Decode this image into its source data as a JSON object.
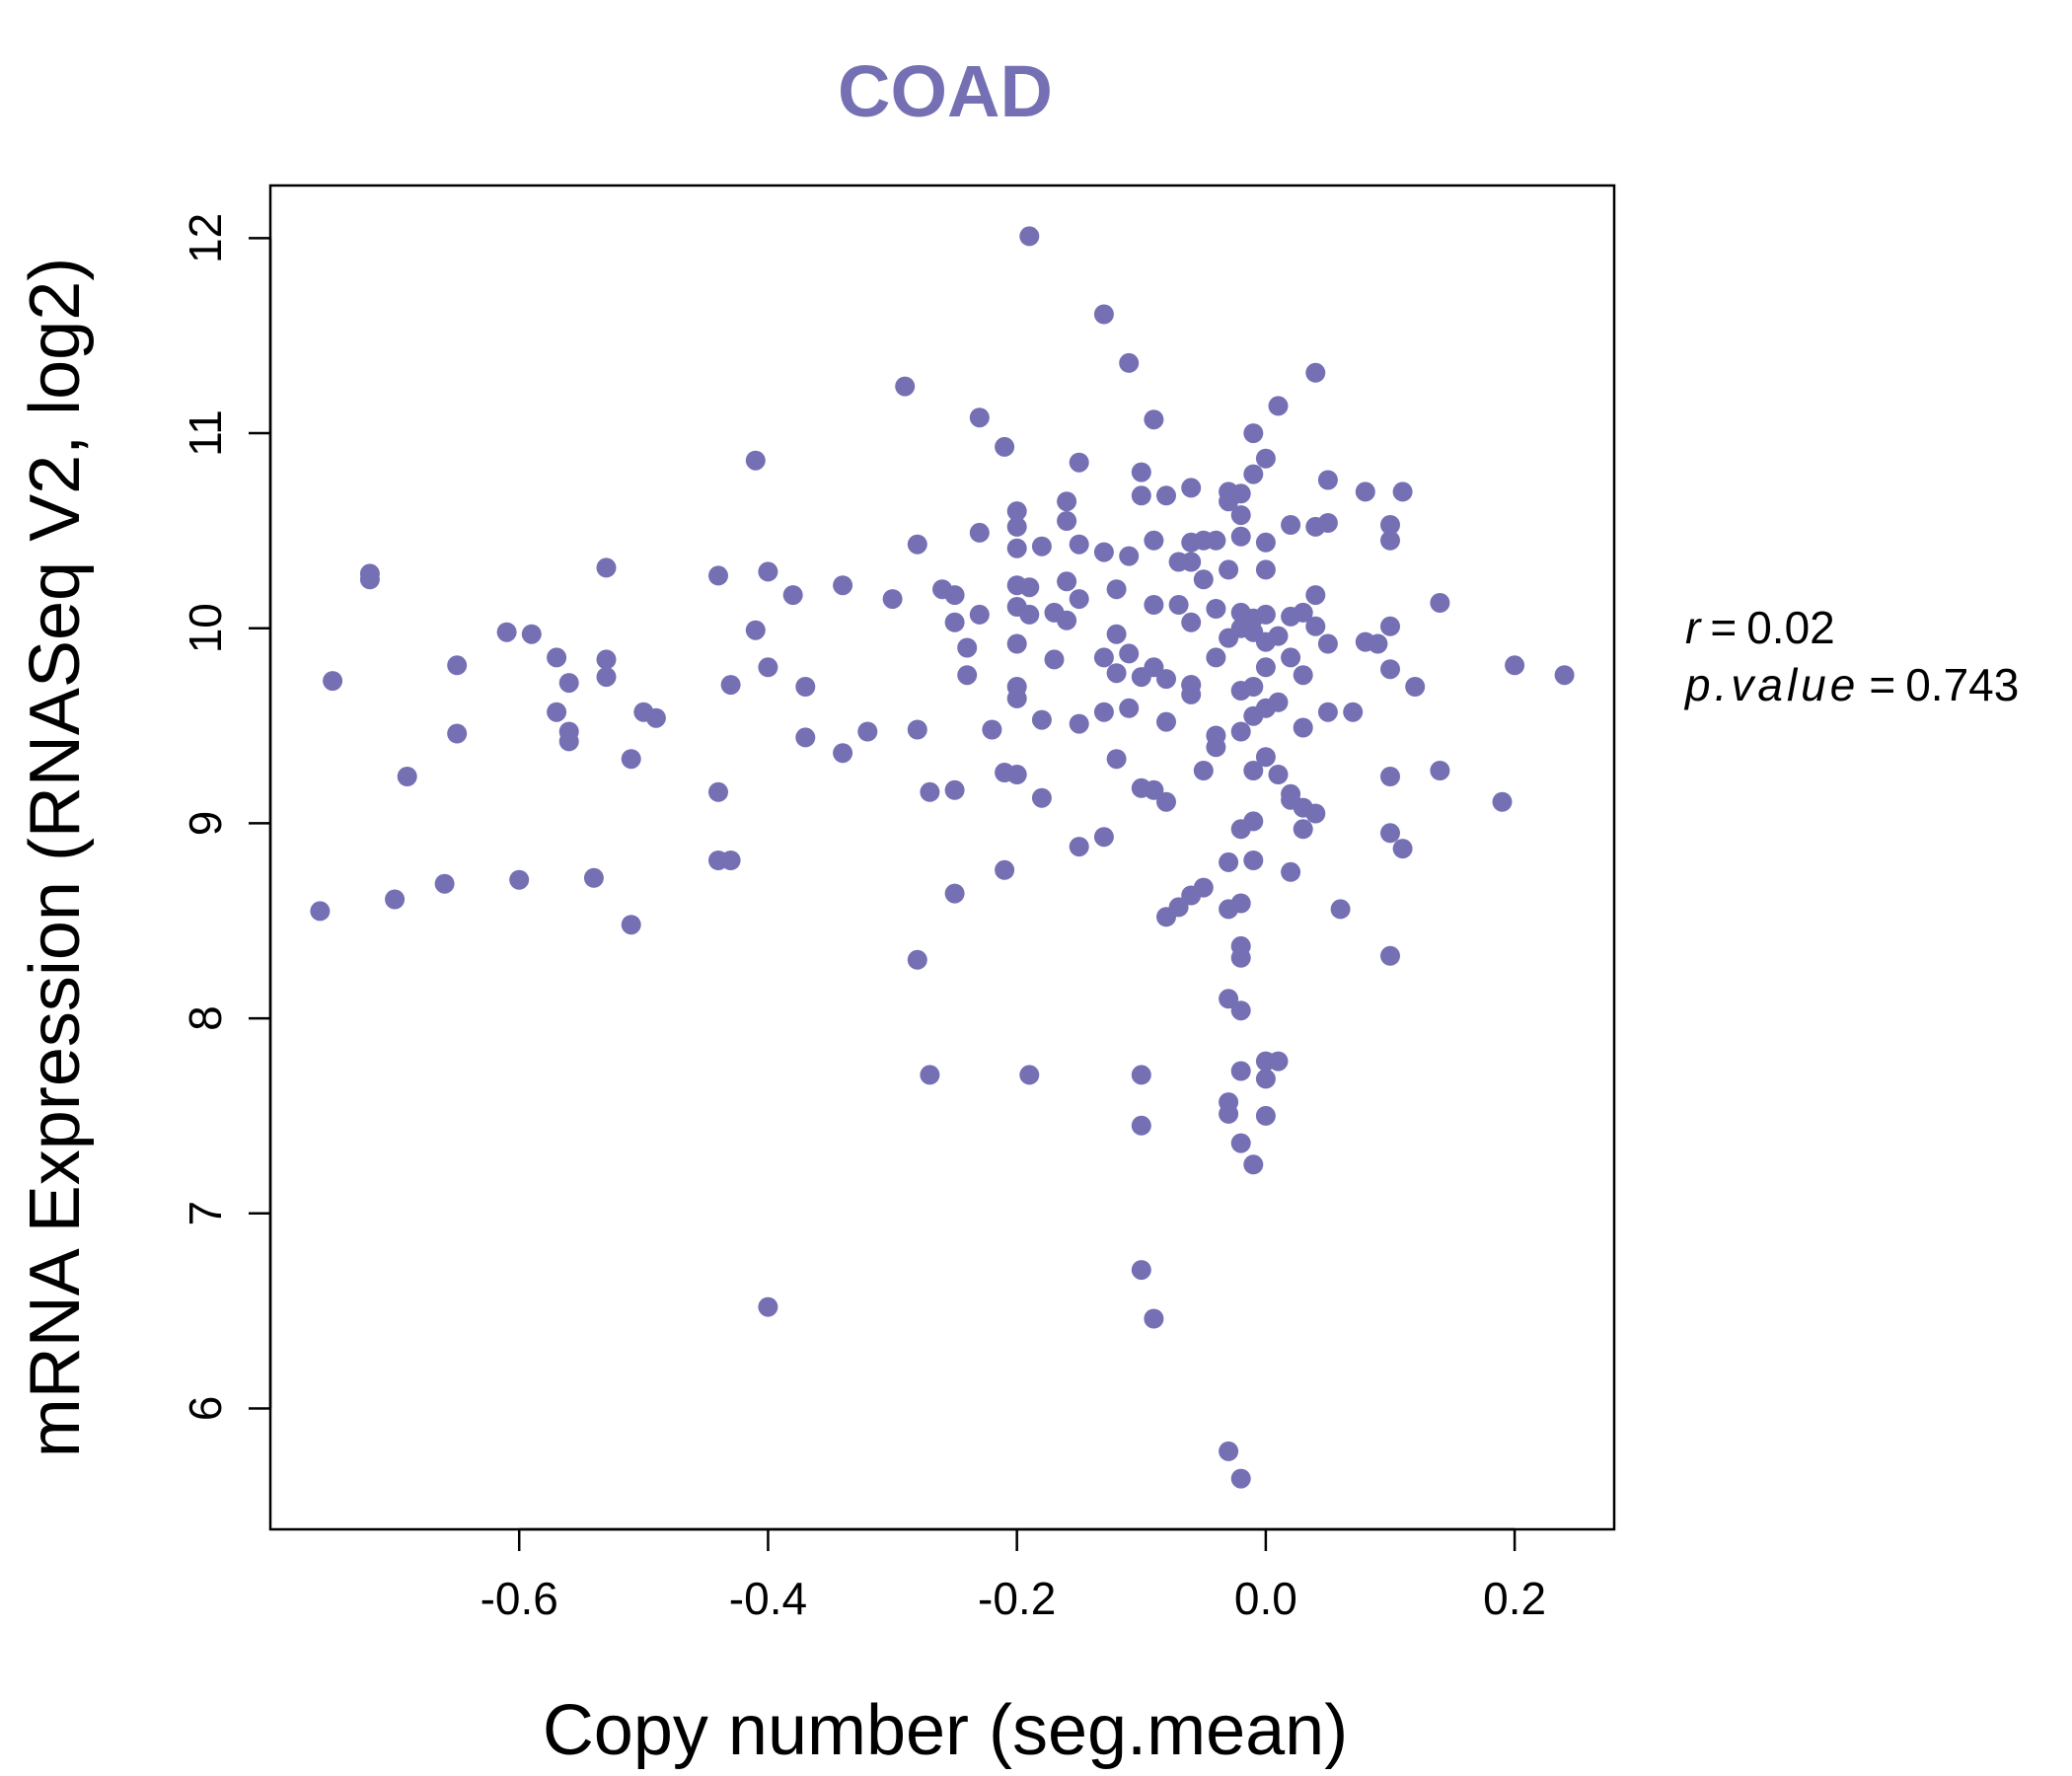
{
  "colors": {
    "point": "#7570B3",
    "title": "#7570B3",
    "axis": "#000000"
  },
  "stats": {
    "r_label": "r",
    "r_value": "0.02",
    "p_label": "p.value",
    "p_value": "0.743"
  },
  "chart_data": {
    "type": "scatter",
    "title": "COAD",
    "xlabel": "Copy number (seg.mean)",
    "ylabel": "mRNA Expression (RNASeq V2, log2)",
    "xlim": [
      -0.8,
      0.28
    ],
    "ylim": [
      5.38,
      12.27
    ],
    "xticks": [
      {
        "value": -0.6,
        "label": "-0.6"
      },
      {
        "value": -0.4,
        "label": "-0.4"
      },
      {
        "value": -0.2,
        "label": "-0.2"
      },
      {
        "value": 0.0,
        "label": "0.0"
      },
      {
        "value": 0.2,
        "label": "0.2"
      }
    ],
    "yticks": [
      {
        "value": 6,
        "label": "6"
      },
      {
        "value": 7,
        "label": "7"
      },
      {
        "value": 8,
        "label": "8"
      },
      {
        "value": 9,
        "label": "9"
      },
      {
        "value": 10,
        "label": "10"
      },
      {
        "value": 11,
        "label": "11"
      },
      {
        "value": 12,
        "label": "12"
      }
    ],
    "grid": false,
    "points": [
      [
        -0.19,
        12.01
      ],
      [
        -0.13,
        11.61
      ],
      [
        -0.11,
        11.36
      ],
      [
        -0.29,
        11.24
      ],
      [
        -0.23,
        11.08
      ],
      [
        -0.09,
        11.07
      ],
      [
        0.04,
        11.31
      ],
      [
        0.01,
        11.14
      ],
      [
        -0.21,
        10.93
      ],
      [
        -0.01,
        11.0
      ],
      [
        0.0,
        10.87
      ],
      [
        -0.41,
        10.86
      ],
      [
        -0.15,
        10.85
      ],
      [
        -0.1,
        10.8
      ],
      [
        -0.01,
        10.79
      ],
      [
        0.05,
        10.76
      ],
      [
        0.08,
        10.7
      ],
      [
        0.11,
        10.7
      ],
      [
        -0.06,
        10.72
      ],
      [
        -0.03,
        10.7
      ],
      [
        -0.02,
        10.69
      ],
      [
        -0.1,
        10.68
      ],
      [
        -0.08,
        10.68
      ],
      [
        -0.03,
        10.65
      ],
      [
        -0.16,
        10.65
      ],
      [
        -0.2,
        10.6
      ],
      [
        -0.02,
        10.58
      ],
      [
        -0.16,
        10.55
      ],
      [
        0.02,
        10.53
      ],
      [
        0.05,
        10.54
      ],
      [
        0.1,
        10.53
      ],
      [
        -0.2,
        10.52
      ],
      [
        -0.23,
        10.49
      ],
      [
        -0.04,
        10.45
      ],
      [
        -0.02,
        10.47
      ],
      [
        0.1,
        10.45
      ],
      [
        -0.28,
        10.43
      ],
      [
        -0.2,
        10.41
      ],
      [
        -0.18,
        10.42
      ],
      [
        -0.15,
        10.43
      ],
      [
        -0.13,
        10.39
      ],
      [
        -0.11,
        10.37
      ],
      [
        -0.09,
        10.45
      ],
      [
        -0.06,
        10.44
      ],
      [
        -0.05,
        10.45
      ],
      [
        0.0,
        10.44
      ],
      [
        0.04,
        10.52
      ],
      [
        -0.72,
        10.28
      ],
      [
        -0.72,
        10.25
      ],
      [
        -0.53,
        10.31
      ],
      [
        -0.44,
        10.27
      ],
      [
        -0.4,
        10.29
      ],
      [
        -0.38,
        10.17
      ],
      [
        -0.34,
        10.22
      ],
      [
        -0.3,
        10.15
      ],
      [
        -0.26,
        10.2
      ],
      [
        -0.25,
        10.17
      ],
      [
        -0.2,
        10.22
      ],
      [
        -0.19,
        10.21
      ],
      [
        -0.16,
        10.24
      ],
      [
        -0.15,
        10.15
      ],
      [
        -0.12,
        10.2
      ],
      [
        -0.07,
        10.34
      ],
      [
        -0.06,
        10.34
      ],
      [
        -0.05,
        10.25
      ],
      [
        -0.03,
        10.3
      ],
      [
        0.0,
        10.3
      ],
      [
        0.04,
        10.17
      ],
      [
        0.14,
        10.13
      ],
      [
        -0.61,
        9.98
      ],
      [
        -0.59,
        9.97
      ],
      [
        -0.41,
        9.99
      ],
      [
        -0.25,
        10.03
      ],
      [
        -0.23,
        10.07
      ],
      [
        -0.2,
        10.11
      ],
      [
        -0.19,
        10.07
      ],
      [
        -0.17,
        10.08
      ],
      [
        -0.16,
        10.04
      ],
      [
        -0.12,
        9.97
      ],
      [
        -0.09,
        10.12
      ],
      [
        -0.07,
        10.12
      ],
      [
        -0.06,
        10.03
      ],
      [
        -0.04,
        10.1
      ],
      [
        -0.02,
        10.08
      ],
      [
        -0.01,
        10.05
      ],
      [
        0.0,
        10.07
      ],
      [
        0.02,
        10.06
      ],
      [
        0.03,
        10.08
      ],
      [
        0.04,
        10.01
      ],
      [
        0.08,
        9.93
      ],
      [
        0.1,
        10.01
      ],
      [
        -0.02,
        10.0
      ],
      [
        -0.01,
        9.98
      ],
      [
        -0.03,
        9.95
      ],
      [
        0.0,
        9.93
      ],
      [
        0.01,
        9.96
      ],
      [
        0.05,
        9.92
      ],
      [
        -0.75,
        9.73
      ],
      [
        -0.65,
        9.81
      ],
      [
        -0.57,
        9.85
      ],
      [
        -0.56,
        9.72
      ],
      [
        -0.53,
        9.84
      ],
      [
        -0.53,
        9.75
      ],
      [
        -0.43,
        9.71
      ],
      [
        -0.4,
        9.8
      ],
      [
        -0.37,
        9.7
      ],
      [
        -0.24,
        9.9
      ],
      [
        -0.24,
        9.76
      ],
      [
        -0.2,
        9.92
      ],
      [
        -0.2,
        9.7
      ],
      [
        -0.17,
        9.84
      ],
      [
        -0.13,
        9.85
      ],
      [
        -0.12,
        9.77
      ],
      [
        -0.11,
        9.87
      ],
      [
        -0.1,
        9.75
      ],
      [
        -0.09,
        9.8
      ],
      [
        -0.08,
        9.74
      ],
      [
        -0.06,
        9.71
      ],
      [
        -0.06,
        9.66
      ],
      [
        -0.04,
        9.85
      ],
      [
        -0.02,
        9.68
      ],
      [
        -0.01,
        9.7
      ],
      [
        0.0,
        9.8
      ],
      [
        0.02,
        9.85
      ],
      [
        0.03,
        9.76
      ],
      [
        0.05,
        9.57
      ],
      [
        0.07,
        9.57
      ],
      [
        0.09,
        9.92
      ],
      [
        0.1,
        9.79
      ],
      [
        0.12,
        9.7
      ],
      [
        -0.65,
        9.46
      ],
      [
        -0.57,
        9.57
      ],
      [
        -0.56,
        9.47
      ],
      [
        -0.56,
        9.42
      ],
      [
        -0.5,
        9.57
      ],
      [
        -0.49,
        9.54
      ],
      [
        -0.37,
        9.44
      ],
      [
        -0.32,
        9.47
      ],
      [
        -0.28,
        9.48
      ],
      [
        -0.22,
        9.48
      ],
      [
        -0.2,
        9.64
      ],
      [
        -0.18,
        9.53
      ],
      [
        -0.15,
        9.51
      ],
      [
        -0.13,
        9.57
      ],
      [
        -0.11,
        9.59
      ],
      [
        -0.08,
        9.52
      ],
      [
        -0.06,
        9.71
      ],
      [
        -0.04,
        9.45
      ],
      [
        -0.02,
        9.47
      ],
      [
        -0.01,
        9.55
      ],
      [
        0.0,
        9.59
      ],
      [
        0.01,
        9.62
      ],
      [
        0.03,
        9.49
      ],
      [
        -0.69,
        9.24
      ],
      [
        -0.51,
        9.33
      ],
      [
        -0.44,
        9.16
      ],
      [
        -0.34,
        9.36
      ],
      [
        -0.27,
        9.16
      ],
      [
        -0.25,
        9.17
      ],
      [
        -0.21,
        9.26
      ],
      [
        -0.2,
        9.25
      ],
      [
        -0.18,
        9.13
      ],
      [
        -0.12,
        9.33
      ],
      [
        -0.1,
        9.18
      ],
      [
        -0.09,
        9.17
      ],
      [
        -0.08,
        9.11
      ],
      [
        -0.05,
        9.27
      ],
      [
        -0.04,
        9.39
      ],
      [
        -0.01,
        9.27
      ],
      [
        0.0,
        9.34
      ],
      [
        0.01,
        9.25
      ],
      [
        0.02,
        9.15
      ],
      [
        0.02,
        9.12
      ],
      [
        0.03,
        9.08
      ],
      [
        0.1,
        9.24
      ],
      [
        0.14,
        9.27
      ],
      [
        0.19,
        9.11
      ],
      [
        0.2,
        9.81
      ],
      [
        0.24,
        9.76
      ],
      [
        -0.76,
        8.55
      ],
      [
        -0.7,
        8.61
      ],
      [
        -0.66,
        8.69
      ],
      [
        -0.6,
        8.71
      ],
      [
        -0.54,
        8.72
      ],
      [
        -0.51,
        8.48
      ],
      [
        -0.44,
        8.81
      ],
      [
        -0.43,
        8.81
      ],
      [
        -0.28,
        8.3
      ],
      [
        -0.25,
        8.64
      ],
      [
        -0.21,
        8.76
      ],
      [
        -0.15,
        8.88
      ],
      [
        -0.13,
        8.93
      ],
      [
        -0.08,
        8.52
      ],
      [
        -0.07,
        8.57
      ],
      [
        -0.06,
        8.63
      ],
      [
        -0.05,
        8.67
      ],
      [
        -0.03,
        8.56
      ],
      [
        -0.03,
        8.8
      ],
      [
        -0.02,
        8.59
      ],
      [
        -0.01,
        8.81
      ],
      [
        -0.01,
        9.01
      ],
      [
        -0.02,
        8.97
      ],
      [
        0.02,
        8.75
      ],
      [
        0.03,
        8.97
      ],
      [
        0.04,
        9.05
      ],
      [
        0.06,
        8.56
      ],
      [
        0.1,
        8.32
      ],
      [
        0.1,
        8.95
      ],
      [
        0.11,
        8.87
      ],
      [
        -0.02,
        8.37
      ],
      [
        -0.02,
        8.31
      ],
      [
        -0.03,
        8.1
      ],
      [
        -0.02,
        8.04
      ],
      [
        -0.27,
        7.71
      ],
      [
        -0.19,
        7.71
      ],
      [
        -0.1,
        7.71
      ],
      [
        -0.1,
        7.45
      ],
      [
        -0.03,
        7.57
      ],
      [
        -0.03,
        7.51
      ],
      [
        -0.02,
        7.36
      ],
      [
        -0.02,
        7.73
      ],
      [
        -0.01,
        7.25
      ],
      [
        0.0,
        7.5
      ],
      [
        0.0,
        7.78
      ],
      [
        0.01,
        7.78
      ],
      [
        0.0,
        7.69
      ],
      [
        -0.4,
        6.52
      ],
      [
        -0.1,
        6.71
      ],
      [
        -0.09,
        6.46
      ],
      [
        -0.03,
        5.78
      ],
      [
        -0.02,
        5.64
      ]
    ]
  }
}
